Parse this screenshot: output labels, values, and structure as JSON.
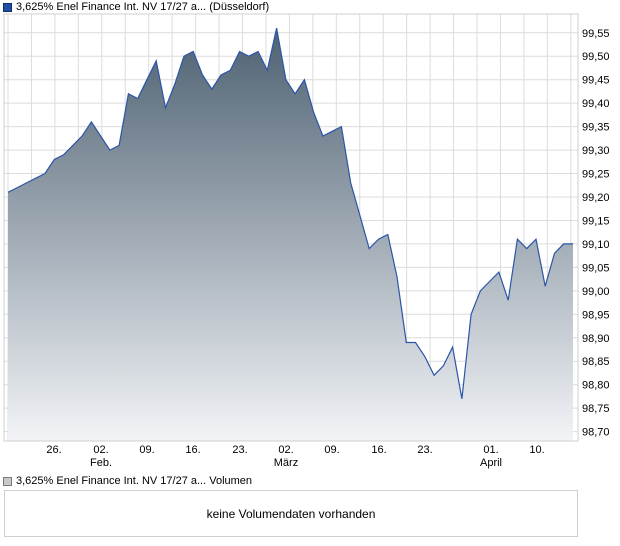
{
  "legend": {
    "price": "3,625% Enel Finance Int. NV 17/27 a... (Düsseldorf)",
    "volume": "3,625% Enel Finance Int. NV 17/27 a... Volumen"
  },
  "volume_panel": {
    "message": "keine Volumendaten vorhanden"
  },
  "colors": {
    "line": "#2b55a8",
    "area_top": "#4e6172",
    "area_bottom": "#f2f4f7",
    "grid": "#dcdcdc",
    "frame": "#cfcfcf"
  },
  "chart_data": {
    "type": "area",
    "series": [
      {
        "values": [
          99.21,
          99.22,
          99.23,
          99.24,
          99.25,
          99.28,
          99.29,
          99.31,
          99.33,
          99.36,
          99.33,
          99.3,
          99.31,
          99.42,
          99.41,
          99.45,
          99.49,
          99.39,
          99.44,
          99.5,
          99.51,
          99.46,
          99.43,
          99.46,
          99.47,
          99.51,
          99.5,
          99.51,
          99.47,
          99.56,
          99.45,
          99.42,
          99.45,
          99.38,
          99.33,
          99.34,
          99.35,
          99.23,
          99.16,
          99.09,
          99.11,
          99.12,
          99.03,
          98.89,
          98.89,
          98.86,
          98.82,
          98.84,
          98.88,
          98.77,
          98.95,
          99.0,
          99.02,
          99.04,
          98.98,
          99.11,
          99.09,
          99.11,
          99.01,
          99.08,
          99.1,
          99.1
        ]
      }
    ],
    "x_ticks": [
      "26.",
      "02.",
      "09.",
      "16.",
      "23.",
      "02.",
      "09.",
      "16.",
      "23.",
      "01.",
      "10."
    ],
    "month_labels": [
      "Feb.",
      "März",
      "April"
    ],
    "y_ticks": [
      "98,70",
      "98,75",
      "98,80",
      "98,85",
      "98,90",
      "98,95",
      "99,00",
      "99,05",
      "99,10",
      "99,15",
      "99,20",
      "99,25",
      "99,30",
      "99,35",
      "99,40",
      "99,45",
      "99,50",
      "99,55"
    ],
    "ylim": [
      98.68,
      99.59
    ],
    "y_axis_position": "right",
    "grid": true
  }
}
